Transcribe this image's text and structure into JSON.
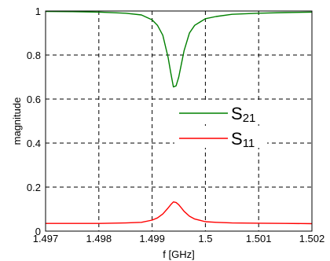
{
  "chart_data": {
    "type": "line",
    "xlabel": "f [GHz]",
    "ylabel": "magnitude",
    "xlim": [
      1.497,
      1.502
    ],
    "ylim": [
      0,
      1
    ],
    "xticks": [
      1.497,
      1.498,
      1.499,
      1.5,
      1.501,
      1.502
    ],
    "xtick_labels": [
      "1.497",
      "1.498",
      "1.499",
      "1.5",
      "1.501",
      "1.502"
    ],
    "yticks": [
      0,
      0.2,
      0.4,
      0.6,
      0.8,
      1
    ],
    "ytick_labels": [
      "0",
      "0.2",
      "0.4",
      "0.6",
      "0.8",
      "1"
    ],
    "grid": true,
    "grid_style": "dashed",
    "legend_position": "center-right",
    "series": [
      {
        "name": "S21",
        "legend_main": "S",
        "legend_sub": "21",
        "color": "#008000",
        "x": [
          1.497,
          1.4975,
          1.498,
          1.4985,
          1.4988,
          1.499,
          1.4991,
          1.4992,
          1.4993,
          1.49935,
          1.4994,
          1.49945,
          1.4995,
          1.49955,
          1.4996,
          1.4997,
          1.4998,
          1.5,
          1.5002,
          1.5005,
          1.501,
          1.5015,
          1.502
        ],
        "y": [
          0.998,
          0.997,
          0.995,
          0.99,
          0.982,
          0.96,
          0.935,
          0.89,
          0.79,
          0.72,
          0.655,
          0.66,
          0.7,
          0.76,
          0.82,
          0.9,
          0.935,
          0.965,
          0.975,
          0.985,
          0.99,
          0.993,
          0.995
        ]
      },
      {
        "name": "S11",
        "legend_main": "S",
        "legend_sub": "11",
        "color": "#ff0000",
        "x": [
          1.497,
          1.4975,
          1.498,
          1.4985,
          1.4988,
          1.499,
          1.4991,
          1.4992,
          1.4993,
          1.49935,
          1.4994,
          1.49945,
          1.4995,
          1.49955,
          1.4996,
          1.4997,
          1.4998,
          1.5,
          1.5002,
          1.5005,
          1.501,
          1.5015,
          1.502
        ],
        "y": [
          0.035,
          0.035,
          0.035,
          0.037,
          0.04,
          0.05,
          0.06,
          0.078,
          0.105,
          0.12,
          0.133,
          0.13,
          0.12,
          0.105,
          0.09,
          0.068,
          0.055,
          0.043,
          0.04,
          0.037,
          0.036,
          0.035,
          0.034
        ]
      }
    ]
  }
}
